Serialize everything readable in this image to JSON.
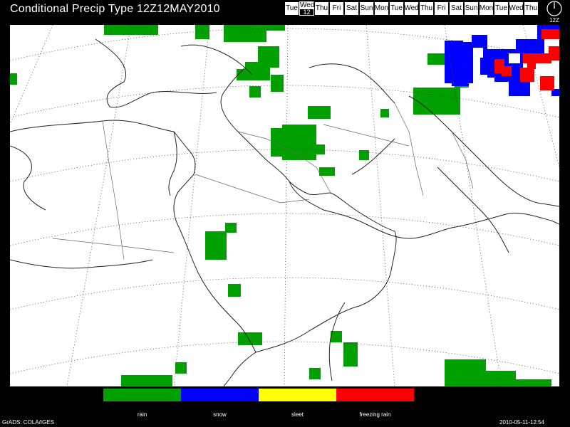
{
  "title": "Conditional Precip Type 12Z12MAY2010",
  "days": [
    {
      "label": "Tue",
      "selected": false
    },
    {
      "label": "Wed",
      "selected": true,
      "num": "12"
    },
    {
      "label": "Thu",
      "selected": false
    },
    {
      "label": "Fri",
      "selected": false
    },
    {
      "label": "Sat",
      "selected": false
    },
    {
      "label": "Sun",
      "selected": false
    },
    {
      "label": "Mon",
      "selected": false
    },
    {
      "label": "Tue",
      "selected": false
    },
    {
      "label": "Wed",
      "selected": false
    },
    {
      "label": "Thu",
      "selected": false
    },
    {
      "label": "Fri",
      "selected": false
    },
    {
      "label": "Sat",
      "selected": false
    },
    {
      "label": "Sun",
      "selected": false
    },
    {
      "label": "Mon",
      "selected": false
    },
    {
      "label": "Tue",
      "selected": false
    },
    {
      "label": "Wed",
      "selected": false
    },
    {
      "label": "Thu",
      "selected": false
    }
  ],
  "clock": {
    "label": "12Z"
  },
  "legend": [
    {
      "label": "rain",
      "color": "#00a000"
    },
    {
      "label": "snow",
      "color": "#0000ff"
    },
    {
      "label": "sleet",
      "color": "#ffff00"
    },
    {
      "label": "freezing rain",
      "color": "#ff0000"
    }
  ],
  "footer": {
    "left": "GrADS: COLA/IGES",
    "right": "2010-05-11-12:54"
  }
}
